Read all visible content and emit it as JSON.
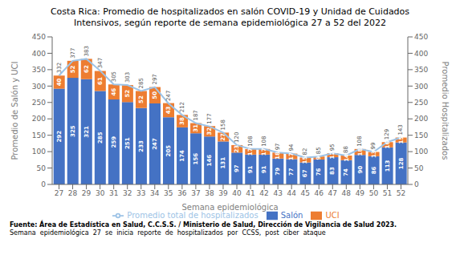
{
  "chart_data": {
    "type": "bar",
    "title": "Costa Rica: Promedio de hospitalizados en salón COVID-19 y Unidad de Cuidados\nIntensivos, según reporte de semana epidemiológica 27 a 52 del 2022",
    "xlabel": "Semana epidemiológica",
    "ylabel": "Promedio de Salón y UCI",
    "y2label": "Promedio Hospitalizados",
    "categories": [
      "27",
      "28",
      "29",
      "30",
      "31",
      "32",
      "33",
      "34",
      "35",
      "36",
      "37",
      "38",
      "39",
      "40",
      "41",
      "42",
      "43",
      "44",
      "45",
      "46",
      "47",
      "48",
      "49",
      "50",
      "51",
      "52"
    ],
    "series": [
      {
        "name": "Salón",
        "type": "bar",
        "color": "#4472C4",
        "values": [
          292,
          325,
          321,
          285,
          259,
          251,
          233,
          247,
          205,
          174,
          156,
          146,
          131,
          97,
          91,
          91,
          79,
          77,
          67,
          76,
          83,
          74,
          90,
          86,
          113,
          128
        ]
      },
      {
        "name": "UCI",
        "type": "bar",
        "color": "#ED7D31",
        "values": [
          40,
          52,
          62,
          61,
          46,
          52,
          52,
          50,
          43,
          38,
          31,
          32,
          27,
          23,
          17,
          17,
          18,
          17,
          15,
          9,
          12,
          14,
          18,
          13,
          16,
          15
        ]
      },
      {
        "name": "Promedio total  de hospitalizados",
        "type": "line",
        "color": "#9DC3E6",
        "values": [
          332,
          377,
          383,
          347,
          305,
          303,
          285,
          297,
          247,
          212,
          187,
          177,
          158,
          120,
          108,
          108,
          97,
          94,
          82,
          85,
          95,
          88,
          108,
          99,
          129,
          143
        ]
      }
    ],
    "stacked": true,
    "data_labels": true,
    "grid": false,
    "legend": "bottom",
    "ylim": [
      0,
      450
    ],
    "yticks": [
      0,
      50,
      100,
      150,
      200,
      250,
      300,
      350,
      400,
      450
    ],
    "y2lim": [
      0,
      450
    ],
    "y2ticks": [
      0,
      50,
      100,
      150,
      200,
      250,
      300,
      350,
      400,
      450
    ],
    "annotations": [
      "Fuente: Área de Estadística en Salud, C.C.S.S. / Ministerio de Salud, Dirección de Vigilancia de Salud 2023.",
      "Semana  epidemiológica  27  se  inicia  reporte  de  hospitalizados  por  CCSS,  post  ciber  ataque"
    ]
  }
}
